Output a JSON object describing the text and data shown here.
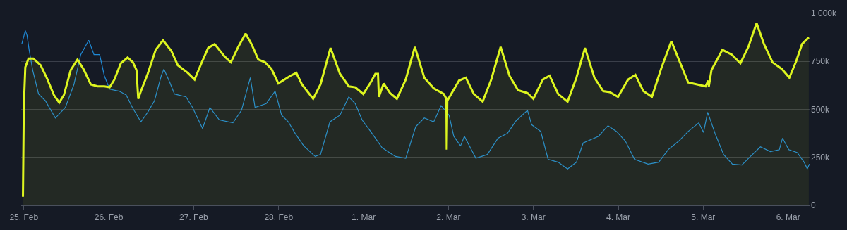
{
  "chart_data": {
    "type": "line",
    "grid": "y",
    "xlim": [
      "--02-24T23:15",
      "--03-06T06:15"
    ],
    "ylim": [
      0,
      1000000
    ],
    "xticks": [
      {
        "value": "--02-25",
        "label": "25. Feb"
      },
      {
        "value": "--02-26",
        "label": "26. Feb"
      },
      {
        "value": "--02-27",
        "label": "27. Feb"
      },
      {
        "value": "--02-28",
        "label": "28. Feb"
      },
      {
        "value": "--03-01",
        "label": "1. Mar"
      },
      {
        "value": "--03-02",
        "label": "2. Mar"
      },
      {
        "value": "--03-03",
        "label": "3. Mar"
      },
      {
        "value": "--03-04",
        "label": "4. Mar"
      },
      {
        "value": "--03-05",
        "label": "5. Mar"
      },
      {
        "value": "--03-06",
        "label": "6. Mar"
      }
    ],
    "yticks": [
      0,
      {
        "value": 250000,
        "label": "250k"
      },
      {
        "value": 500000,
        "label": "500k"
      },
      {
        "value": 750000,
        "label": "750k"
      },
      {
        "value": 1000000,
        "label": "1 000k"
      }
    ],
    "series": [
      {
        "type": "area",
        "color": "#ddf51f",
        "x": [
          "--02-24T23:45",
          "--02-25T00:00",
          "--02-25T00:25",
          "--02-25T01:20",
          "--02-25T02:40",
          "--02-25T04:45",
          "--02-25T06:35",
          "--02-25T08:30",
          "--02-25T10:00",
          "--02-25T11:20",
          "--02-25T13:15",
          "--02-25T15:10",
          "--02-25T17:00",
          "--02-25T18:55",
          "--02-25T20:50",
          "--02-25T22:45",
          "--02-26T00:15",
          "--02-26T01:35",
          "--02-26T03:25",
          "--02-26T05:20",
          "--02-26T06:50",
          "--02-26T07:50",
          "--02-26T08:20",
          "--02-26T09:05",
          "--02-26T11:00",
          "--02-26T13:15",
          "--02-26T15:20",
          "--02-26T17:40",
          "--02-26T19:30",
          "--02-26T22:20",
          "--02-27T00:15",
          "--02-27T02:10",
          "--02-27T04:05",
          "--02-27T05:55",
          "--02-27T08:45",
          "--02-27T10:30",
          "--02-27T12:35",
          "--02-27T14:40",
          "--02-27T16:20",
          "--02-27T18:15",
          "--02-27T20:10",
          "--02-27T22:00",
          "--02-27T23:55",
          "--02-28T03:20",
          "--02-28T05:00",
          "--02-28T06:35",
          "--02-28T09:45",
          "--02-28T11:50",
          "--02-28T14:40",
          "--02-28T17:20",
          "--02-28T19:50",
          "--02-28T21:40",
          "--02-28T23:55",
          "--03-01T02:00",
          "--03-01T03:20",
          "--03-01T04:05",
          "--03-01T04:20",
          "--03-01T05:40",
          "--03-01T07:30",
          "--03-01T09:25",
          "--03-01T11:55",
          "--03-01T14:30",
          "--03-01T17:10",
          "--03-01T19:50",
          "--03-01T22:40",
          "--03-01T23:25",
          "--03-01T23:30",
          "--03-01T23:40",
          "--03-02T03:00",
          "--03-02T04:55",
          "--03-02T07:10",
          "--03-02T09:40",
          "--03-02T12:05",
          "--03-02T14:45",
          "--03-02T17:15",
          "--03-02T19:40",
          "--03-02T22:20",
          "--03-03T00:00",
          "--03-03T02:40",
          "--03-03T04:35",
          "--03-03T07:00",
          "--03-03T09:40",
          "--03-03T12:10",
          "--03-03T14:35",
          "--03-03T17:15",
          "--03-03T19:45",
          "--03-03T21:35",
          "--03-03T23:55",
          "--03-04T02:45",
          "--03-04T04:50",
          "--03-04T07:05",
          "--03-04T09:30",
          "--03-04T12:10",
          "--03-04T15:00",
          "--03-04T17:05",
          "--03-04T19:45",
          "--03-04T22:15",
          "--03-05T00:40",
          "--03-05T01:25",
          "--03-05T01:35",
          "--03-05T02:20",
          "--03-05T05:25",
          "--03-05T08:05",
          "--03-05T10:30",
          "--03-05T12:45",
          "--03-05T15:05",
          "--03-05T17:10",
          "--03-05T19:35",
          "--03-05T22:15",
          "--03-06T00:20",
          "--03-06T02:15",
          "--03-06T03:55",
          "--03-06T05:50"
        ],
        "values": [
          45000,
          520000,
          720000,
          765000,
          765000,
          730000,
          660000,
          575000,
          535000,
          575000,
          705000,
          760000,
          705000,
          630000,
          620000,
          620000,
          615000,
          655000,
          740000,
          770000,
          745000,
          705000,
          555000,
          595000,
          685000,
          810000,
          860000,
          805000,
          730000,
          690000,
          655000,
          740000,
          820000,
          840000,
          775000,
          745000,
          825000,
          895000,
          840000,
          760000,
          745000,
          710000,
          635000,
          675000,
          690000,
          630000,
          555000,
          630000,
          820000,
          685000,
          620000,
          615000,
          580000,
          640000,
          685000,
          685000,
          565000,
          635000,
          585000,
          555000,
          655000,
          825000,
          665000,
          610000,
          580000,
          555000,
          290000,
          545000,
          650000,
          665000,
          580000,
          540000,
          655000,
          825000,
          675000,
          600000,
          585000,
          555000,
          655000,
          675000,
          580000,
          540000,
          665000,
          820000,
          665000,
          595000,
          590000,
          565000,
          655000,
          680000,
          595000,
          565000,
          715000,
          855000,
          760000,
          640000,
          630000,
          620000,
          650000,
          620000,
          705000,
          810000,
          785000,
          740000,
          825000,
          950000,
          840000,
          745000,
          710000,
          665000,
          750000,
          840000,
          875000
        ]
      },
      {
        "color": "#1f8ad6",
        "x": [
          "--02-24T23:25",
          "--02-25T00:25",
          "--02-25T00:55",
          "--02-25T01:30",
          "--02-25T02:30",
          "--02-25T04:10",
          "--02-25T06:05",
          "--02-25T08:55",
          "--02-25T11:45",
          "--02-25T14:10",
          "--02-25T16:05",
          "--02-25T18:20",
          "--02-25T19:50",
          "--02-25T21:25",
          "--02-25T22:45",
          "--02-26T00:15",
          "--02-26T02:55",
          "--02-26T04:55",
          "--02-26T06:40",
          "--02-26T09:05",
          "--02-26T11:00",
          "--02-26T12:55",
          "--02-26T14:50",
          "--02-26T15:35",
          "--02-26T17:15",
          "--02-26T18:35",
          "--02-26T21:50",
          "--02-26T23:40",
          "--02-27T02:30",
          "--02-27T04:35",
          "--02-27T07:15",
          "--02-27T11:05",
          "--02-27T13:30",
          "--02-27T16:00",
          "--02-27T17:20",
          "--02-27T20:30",
          "--02-27T23:00",
          "--02-28T00:50",
          "--02-28T02:45",
          "--02-28T04:40",
          "--02-28T07:05",
          "--02-28T10:20",
          "--02-28T11:50",
          "--02-28T14:30",
          "--02-28T17:20",
          "--02-28T19:50",
          "--02-28T21:40",
          "--02-28T23:35",
          "--03-01T02:00",
          "--03-01T05:15",
          "--03-01T09:00",
          "--03-01T11:55",
          "--03-01T14:45",
          "--03-01T17:10",
          "--03-01T19:50",
          "--03-01T21:55",
          "--03-02T00:10",
          "--03-02T01:30",
          "--03-02T03:25",
          "--03-02T04:30",
          "--03-02T07:45",
          "--03-02T11:00",
          "--03-02T14:00",
          "--03-02T16:40",
          "--03-02T19:05",
          "--03-02T22:20",
          "--03-02T23:30",
          "--03-03T02:05",
          "--03-03T04:10",
          "--03-03T07:00",
          "--03-03T09:40",
          "--03-03T12:10",
          "--03-03T14:05",
          "--03-03T18:25",
          "--03-03T21:05",
          "--03-03T23:30",
          "--03-04T02:00",
          "--03-04T04:35",
          "--03-04T08:25",
          "--03-04T11:25",
          "--03-04T14:05",
          "--03-04T17:05",
          "--03-04T19:45",
          "--03-04T22:45",
          "--03-05T00:05",
          "--03-05T01:15",
          "--03-05T03:20",
          "--03-05T05:45",
          "--03-05T08:15",
          "--03-05T10:55",
          "--03-05T13:20",
          "--03-05T16:10",
          "--03-05T19:00",
          "--03-05T21:30",
          "--03-05T22:25",
          "--03-06T00:10",
          "--03-06T02:35",
          "--03-06T04:30",
          "--03-06T05:25",
          "--03-06T06:00"
        ],
        "values": [
          840000,
          910000,
          885000,
          810000,
          705000,
          580000,
          545000,
          455000,
          510000,
          630000,
          785000,
          860000,
          785000,
          785000,
          675000,
          605000,
          595000,
          575000,
          510000,
          435000,
          485000,
          545000,
          675000,
          710000,
          640000,
          580000,
          565000,
          510000,
          400000,
          510000,
          445000,
          430000,
          495000,
          665000,
          510000,
          530000,
          595000,
          470000,
          435000,
          375000,
          310000,
          255000,
          265000,
          435000,
          470000,
          565000,
          530000,
          445000,
          385000,
          300000,
          255000,
          245000,
          410000,
          455000,
          435000,
          520000,
          470000,
          360000,
          310000,
          360000,
          245000,
          265000,
          350000,
          375000,
          440000,
          495000,
          420000,
          385000,
          240000,
          225000,
          190000,
          225000,
          325000,
          360000,
          415000,
          385000,
          335000,
          240000,
          215000,
          225000,
          290000,
          335000,
          385000,
          430000,
          380000,
          485000,
          375000,
          265000,
          215000,
          210000,
          255000,
          305000,
          280000,
          290000,
          350000,
          290000,
          275000,
          225000,
          190000,
          215000
        ]
      }
    ]
  }
}
